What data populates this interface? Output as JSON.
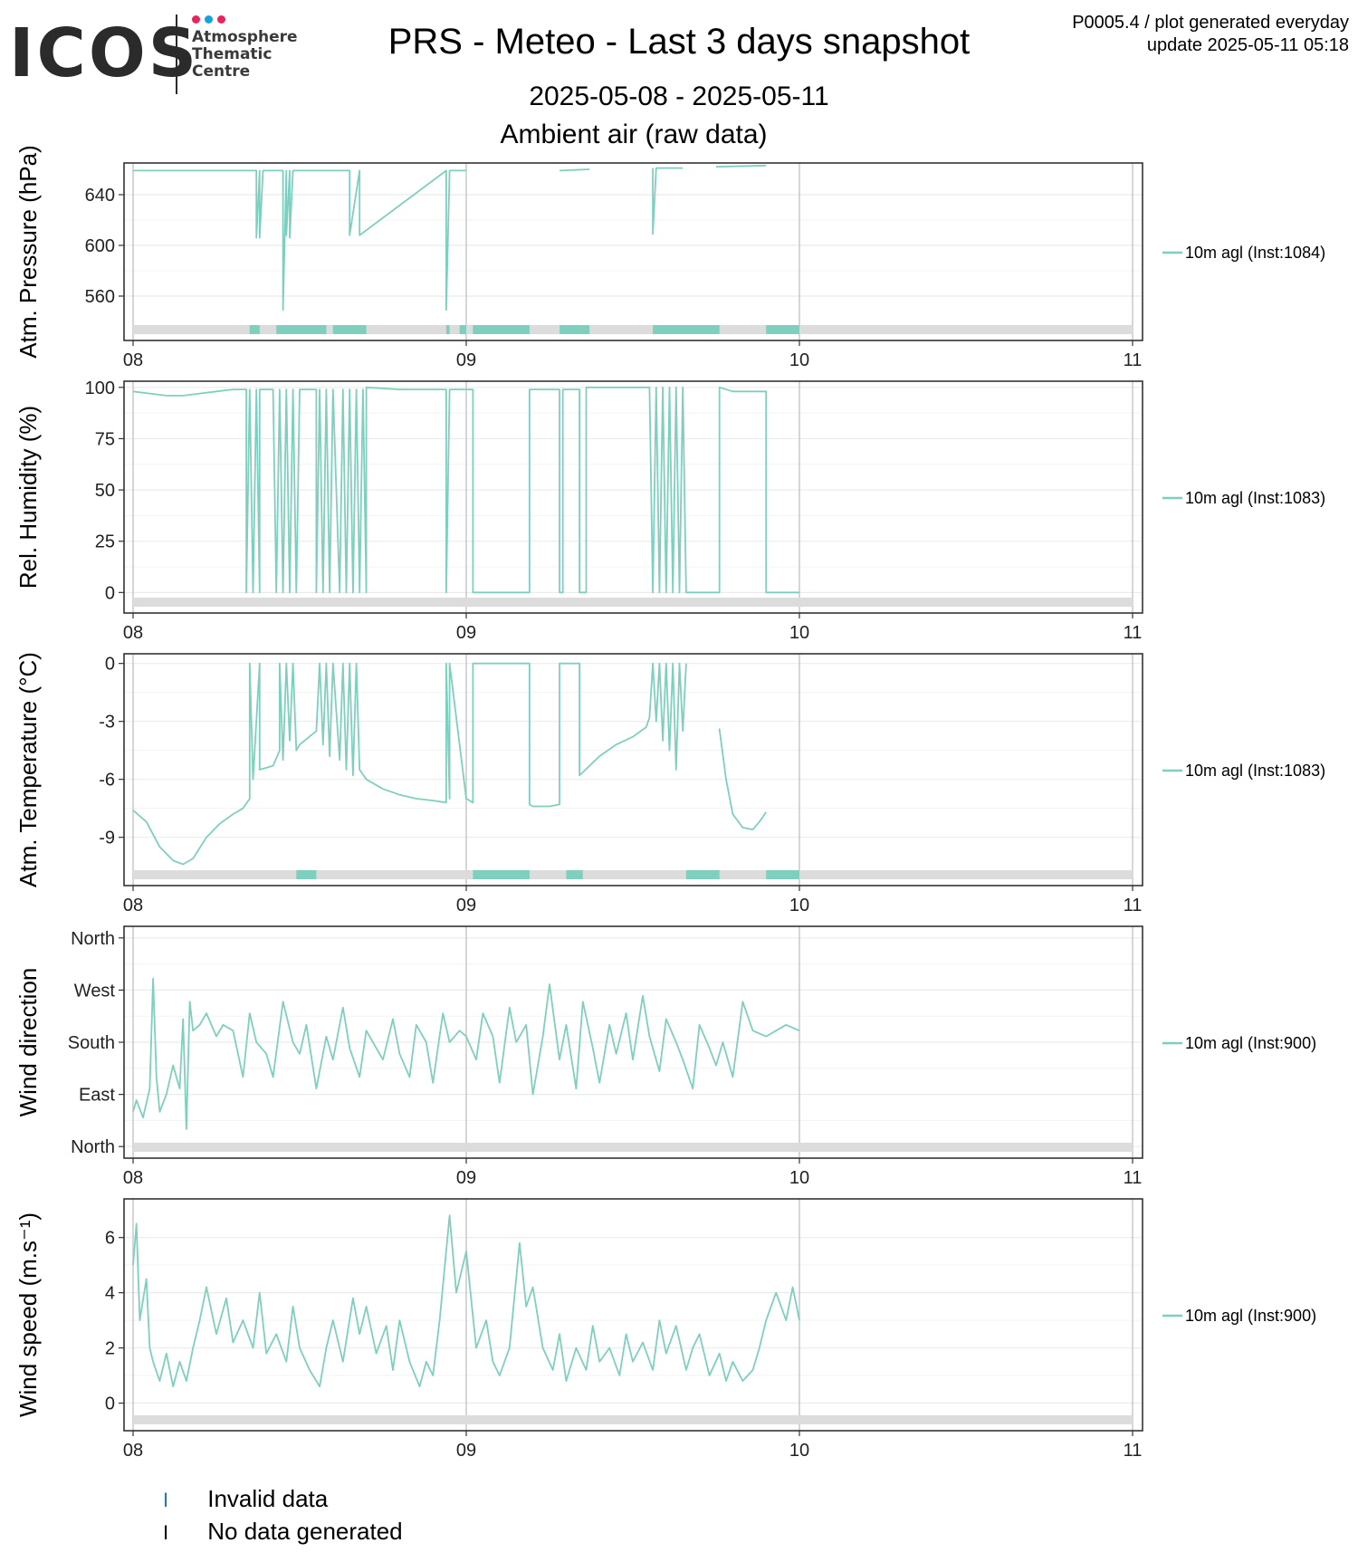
{
  "header": {
    "logo_text": "ICOS",
    "logo_subtitle": [
      "Atmosphere",
      "Thematic",
      "Centre"
    ],
    "logo_dot_colors": [
      "#e6245e",
      "#1aa0db",
      "#e6245e"
    ],
    "title": "PRS - Meteo - Last 3 days snapshot",
    "dates": "2025-05-08 - 2025-05-11",
    "subtitle": "Ambient air (raw data)",
    "plot_id": "P0005.4 / plot generated everyday",
    "update": "update  2025-05-11 05:18"
  },
  "colors": {
    "series": "#7fcfbf",
    "flag": "#7fcfbf",
    "no_data_band": "#dcdcdc",
    "grid": "#ebebeb",
    "day_line": "#c8c8c8"
  },
  "footer_legend": [
    {
      "mark": "I",
      "mark_color": "#1f77b4",
      "label": "Invalid data"
    },
    {
      "mark": "I",
      "mark_color": "#000000",
      "label": "No data generated"
    }
  ],
  "chart_data": [
    {
      "type": "line",
      "ylabel": "Atm. Pressure (hPa)",
      "legend": "10m agl (Inst:1084)",
      "ylim": [
        525,
        665
      ],
      "yticks": [
        560,
        600,
        640
      ],
      "ytick_labels": [
        "560",
        "600",
        "640"
      ],
      "xlim": [
        8,
        11
      ],
      "xticks": [
        8,
        9,
        10,
        11
      ],
      "xtick_labels": [
        "08",
        "09",
        "10",
        "11"
      ],
      "x": [
        8.0,
        8.37,
        8.37,
        8.38,
        8.38,
        8.39,
        8.39,
        8.45,
        8.45,
        8.46,
        8.46,
        8.47,
        8.47,
        8.48,
        8.48,
        8.65,
        8.65,
        8.68,
        8.68,
        8.94,
        8.94,
        8.95,
        8.95,
        9.0,
        9.19,
        9.28,
        9.37,
        9.56,
        9.56,
        9.57,
        9.57,
        9.65,
        9.75,
        9.9
      ],
      "y": [
        659,
        659,
        606,
        659,
        606,
        659,
        659,
        659,
        549,
        659,
        608,
        659,
        606,
        659,
        659,
        659,
        608,
        659,
        608,
        659,
        549,
        659,
        659,
        659,
        659,
        659,
        660,
        661,
        609,
        661,
        661,
        661,
        662,
        663
      ],
      "gaps_after_x": [
        9.0,
        9.19,
        9.37,
        9.65
      ],
      "flag_intervals": [
        [
          8.35,
          8.38
        ],
        [
          8.43,
          8.58
        ],
        [
          8.6,
          8.7
        ],
        [
          8.94,
          8.95
        ],
        [
          8.98,
          9.0
        ],
        [
          9.02,
          9.19
        ],
        [
          9.28,
          9.37
        ],
        [
          9.56,
          9.76
        ],
        [
          9.9,
          10.0
        ]
      ]
    },
    {
      "type": "line",
      "ylabel": "Rel. Humidity (%)",
      "legend": "10m agl (Inst:1083)",
      "ylim": [
        -10,
        103
      ],
      "yticks": [
        0,
        25,
        50,
        75,
        100
      ],
      "ytick_labels": [
        "0",
        "25",
        "50",
        "75",
        "100"
      ],
      "xlim": [
        8,
        11
      ],
      "xticks": [
        8,
        9,
        10,
        11
      ],
      "xtick_labels": [
        "08",
        "09",
        "10",
        "11"
      ],
      "x": [
        8.0,
        8.05,
        8.1,
        8.15,
        8.2,
        8.25,
        8.3,
        8.34,
        8.34,
        8.35,
        8.36,
        8.37,
        8.38,
        8.38,
        8.42,
        8.43,
        8.44,
        8.45,
        8.46,
        8.47,
        8.48,
        8.49,
        8.5,
        8.5,
        8.55,
        8.55,
        8.56,
        8.57,
        8.58,
        8.59,
        8.6,
        8.6,
        8.62,
        8.63,
        8.64,
        8.65,
        8.66,
        8.67,
        8.68,
        8.69,
        8.7,
        8.7,
        8.8,
        8.94,
        8.94,
        8.95,
        8.95,
        9.02,
        9.02,
        9.19,
        9.19,
        9.28,
        9.28,
        9.29,
        9.29,
        9.34,
        9.34,
        9.36,
        9.36,
        9.55,
        9.56,
        9.57,
        9.58,
        9.59,
        9.6,
        9.61,
        9.62,
        9.63,
        9.64,
        9.65,
        9.66,
        9.66,
        9.76,
        9.76,
        9.8,
        9.85,
        9.9,
        9.9,
        10.0
      ],
      "y": [
        98,
        97,
        96,
        96,
        97,
        98,
        99,
        99,
        0,
        99,
        0,
        99,
        0,
        99,
        99,
        0,
        99,
        0,
        99,
        0,
        99,
        0,
        99,
        99,
        99,
        0,
        99,
        0,
        99,
        0,
        99,
        99,
        0,
        99,
        0,
        99,
        0,
        99,
        0,
        99,
        0,
        100,
        99,
        99,
        0,
        99,
        99,
        99,
        0,
        0,
        99,
        99,
        0,
        0,
        99,
        99,
        0,
        0,
        100,
        100,
        0,
        100,
        0,
        100,
        0,
        100,
        0,
        100,
        0,
        100,
        0,
        0,
        0,
        100,
        98,
        98,
        98,
        0,
        0
      ],
      "gaps_after_x": [],
      "flag_intervals": []
    },
    {
      "type": "line",
      "ylabel": "Atm. Temperature (°C)",
      "legend": "10m agl (Inst:1083)",
      "ylim": [
        -11.5,
        0.5
      ],
      "yticks": [
        -9,
        -6,
        -3,
        0
      ],
      "ytick_labels": [
        "-9",
        "-6",
        "-3",
        "0"
      ],
      "xlim": [
        8,
        11
      ],
      "xticks": [
        8,
        9,
        10,
        11
      ],
      "xtick_labels": [
        "08",
        "09",
        "10",
        "11"
      ],
      "x": [
        8.0,
        8.04,
        8.08,
        8.12,
        8.15,
        8.18,
        8.22,
        8.26,
        8.3,
        8.33,
        8.35,
        8.35,
        8.36,
        8.38,
        8.38,
        8.42,
        8.44,
        8.44,
        8.45,
        8.46,
        8.47,
        8.48,
        8.49,
        8.5,
        8.55,
        8.56,
        8.57,
        8.58,
        8.59,
        8.6,
        8.62,
        8.63,
        8.64,
        8.65,
        8.66,
        8.67,
        8.68,
        8.7,
        8.75,
        8.8,
        8.85,
        8.9,
        8.94,
        8.94,
        8.95,
        8.95,
        9.0,
        9.02,
        9.02,
        9.19,
        9.19,
        9.2,
        9.25,
        9.28,
        9.28,
        9.34,
        9.34,
        9.4,
        9.45,
        9.5,
        9.54,
        9.55,
        9.56,
        9.57,
        9.58,
        9.59,
        9.6,
        9.61,
        9.62,
        9.63,
        9.64,
        9.65,
        9.66,
        9.66,
        9.76,
        9.76,
        9.78,
        9.8,
        9.83,
        9.86,
        9.88,
        9.9
      ],
      "y": [
        -7.6,
        -8.2,
        -9.5,
        -10.2,
        -10.4,
        -10.1,
        -9.0,
        -8.3,
        -7.8,
        -7.5,
        -7.0,
        0,
        -6.0,
        0,
        -5.5,
        -5.3,
        -4.5,
        0,
        -5.0,
        0,
        -4.0,
        0,
        -4.5,
        -4.2,
        -3.5,
        0,
        -4.2,
        0,
        -4.8,
        0,
        -5.0,
        0,
        -5.5,
        0,
        -5.8,
        0,
        -5.5,
        -6.0,
        -6.5,
        -6.8,
        -7.0,
        -7.1,
        -7.2,
        0,
        -7.0,
        0,
        -7.0,
        -7.2,
        0,
        0,
        -7.3,
        -7.4,
        -7.4,
        -7.3,
        0,
        0,
        -5.8,
        -4.8,
        -4.2,
        -3.8,
        -3.3,
        -2.8,
        0,
        -3.0,
        0,
        -4.0,
        0,
        -4.5,
        0,
        -5.5,
        0,
        -3.5,
        0,
        -3.5,
        -3.5,
        -3.4,
        -6.0,
        -7.8,
        -8.5,
        -8.6,
        -8.2,
        -7.7
      ],
      "gaps_after_x": [
        9.66
      ],
      "flag_intervals": [
        [
          8.49,
          8.55
        ],
        [
          9.02,
          9.19
        ],
        [
          9.3,
          9.35
        ],
        [
          9.66,
          9.76
        ],
        [
          9.9,
          10.0
        ]
      ]
    },
    {
      "type": "line",
      "ylabel": "Wind direction",
      "legend": "10m agl (Inst:900)",
      "ylim": [
        -20,
        380
      ],
      "yticks": [
        0,
        90,
        180,
        270,
        360
      ],
      "ytick_labels": [
        "North",
        "East",
        "South",
        "West",
        "North"
      ],
      "xlim": [
        8,
        11
      ],
      "xticks": [
        8,
        9,
        10,
        11
      ],
      "xtick_labels": [
        "08",
        "09",
        "10",
        "11"
      ],
      "x": [
        8.0,
        8.01,
        8.03,
        8.05,
        8.06,
        8.07,
        8.08,
        8.1,
        8.12,
        8.13,
        8.14,
        8.15,
        8.16,
        8.17,
        8.18,
        8.2,
        8.22,
        8.25,
        8.27,
        8.3,
        8.33,
        8.35,
        8.37,
        8.4,
        8.42,
        8.45,
        8.48,
        8.5,
        8.52,
        8.55,
        8.58,
        8.6,
        8.63,
        8.65,
        8.68,
        8.7,
        8.73,
        8.75,
        8.78,
        8.8,
        8.83,
        8.85,
        8.88,
        8.9,
        8.93,
        8.95,
        8.98,
        9.0,
        9.03,
        9.05,
        9.08,
        9.1,
        9.13,
        9.15,
        9.18,
        9.2,
        9.23,
        9.25,
        9.28,
        9.3,
        9.33,
        9.35,
        9.38,
        9.4,
        9.43,
        9.45,
        9.48,
        9.5,
        9.53,
        9.55,
        9.58,
        9.6,
        9.63,
        9.65,
        9.68,
        9.7,
        9.73,
        9.75,
        9.77,
        9.8,
        9.83,
        9.86,
        9.9,
        9.93,
        9.96,
        10.0
      ],
      "y": [
        60,
        80,
        50,
        100,
        290,
        120,
        60,
        90,
        140,
        120,
        100,
        220,
        30,
        250,
        200,
        210,
        230,
        190,
        210,
        200,
        120,
        230,
        180,
        160,
        120,
        250,
        180,
        160,
        210,
        100,
        190,
        150,
        240,
        170,
        120,
        200,
        170,
        150,
        220,
        160,
        120,
        210,
        180,
        110,
        230,
        180,
        200,
        190,
        150,
        230,
        190,
        110,
        240,
        180,
        210,
        90,
        190,
        280,
        150,
        210,
        100,
        250,
        170,
        110,
        210,
        160,
        230,
        150,
        260,
        190,
        130,
        220,
        180,
        150,
        100,
        210,
        170,
        140,
        180,
        120,
        250,
        200,
        190,
        200,
        210,
        200
      ],
      "gaps_after_x": [],
      "flag_intervals": []
    },
    {
      "type": "line",
      "ylabel": "Wind speed (m.s⁻¹)",
      "legend": "10m agl (Inst:900)",
      "ylim": [
        -1,
        7.4
      ],
      "yticks": [
        0,
        2,
        4,
        6
      ],
      "ytick_labels": [
        "0",
        "2",
        "4",
        "6"
      ],
      "xlim": [
        8,
        11
      ],
      "xticks": [
        8,
        9,
        10,
        11
      ],
      "xtick_labels": [
        "08",
        "09",
        "10",
        "11"
      ],
      "x": [
        8.0,
        8.01,
        8.02,
        8.04,
        8.05,
        8.06,
        8.08,
        8.1,
        8.12,
        8.14,
        8.16,
        8.18,
        8.2,
        8.22,
        8.25,
        8.28,
        8.3,
        8.33,
        8.36,
        8.38,
        8.4,
        8.43,
        8.46,
        8.48,
        8.5,
        8.53,
        8.56,
        8.58,
        8.6,
        8.63,
        8.66,
        8.68,
        8.7,
        8.73,
        8.76,
        8.78,
        8.8,
        8.83,
        8.86,
        8.88,
        8.9,
        8.92,
        8.95,
        8.97,
        9.0,
        9.03,
        9.06,
        9.08,
        9.1,
        9.13,
        9.16,
        9.18,
        9.2,
        9.23,
        9.26,
        9.28,
        9.3,
        9.33,
        9.36,
        9.38,
        9.4,
        9.43,
        9.46,
        9.48,
        9.5,
        9.53,
        9.56,
        9.58,
        9.6,
        9.63,
        9.66,
        9.68,
        9.7,
        9.73,
        9.76,
        9.78,
        9.8,
        9.83,
        9.86,
        9.88,
        9.9,
        9.93,
        9.96,
        9.98,
        10.0
      ],
      "y": [
        5.0,
        6.5,
        3.0,
        4.5,
        2.0,
        1.5,
        0.8,
        1.8,
        0.6,
        1.5,
        0.8,
        2.0,
        3.0,
        4.2,
        2.5,
        3.8,
        2.2,
        3.0,
        2.0,
        4.0,
        1.8,
        2.5,
        1.5,
        3.5,
        2.0,
        1.2,
        0.6,
        2.0,
        3.0,
        1.5,
        3.8,
        2.5,
        3.5,
        1.8,
        2.8,
        1.2,
        3.0,
        1.5,
        0.6,
        1.5,
        1.0,
        3.0,
        6.8,
        4.0,
        5.5,
        2.0,
        3.0,
        1.5,
        1.0,
        2.0,
        5.8,
        3.5,
        4.2,
        2.0,
        1.2,
        2.5,
        0.8,
        2.0,
        1.2,
        2.8,
        1.5,
        2.0,
        1.0,
        2.5,
        1.5,
        2.2,
        1.2,
        3.0,
        1.8,
        2.8,
        1.2,
        2.0,
        2.5,
        1.0,
        1.8,
        0.8,
        1.5,
        0.8,
        1.2,
        2.0,
        3.0,
        4.0,
        3.0,
        4.2,
        3.0
      ],
      "gaps_after_x": [],
      "flag_intervals": []
    }
  ]
}
